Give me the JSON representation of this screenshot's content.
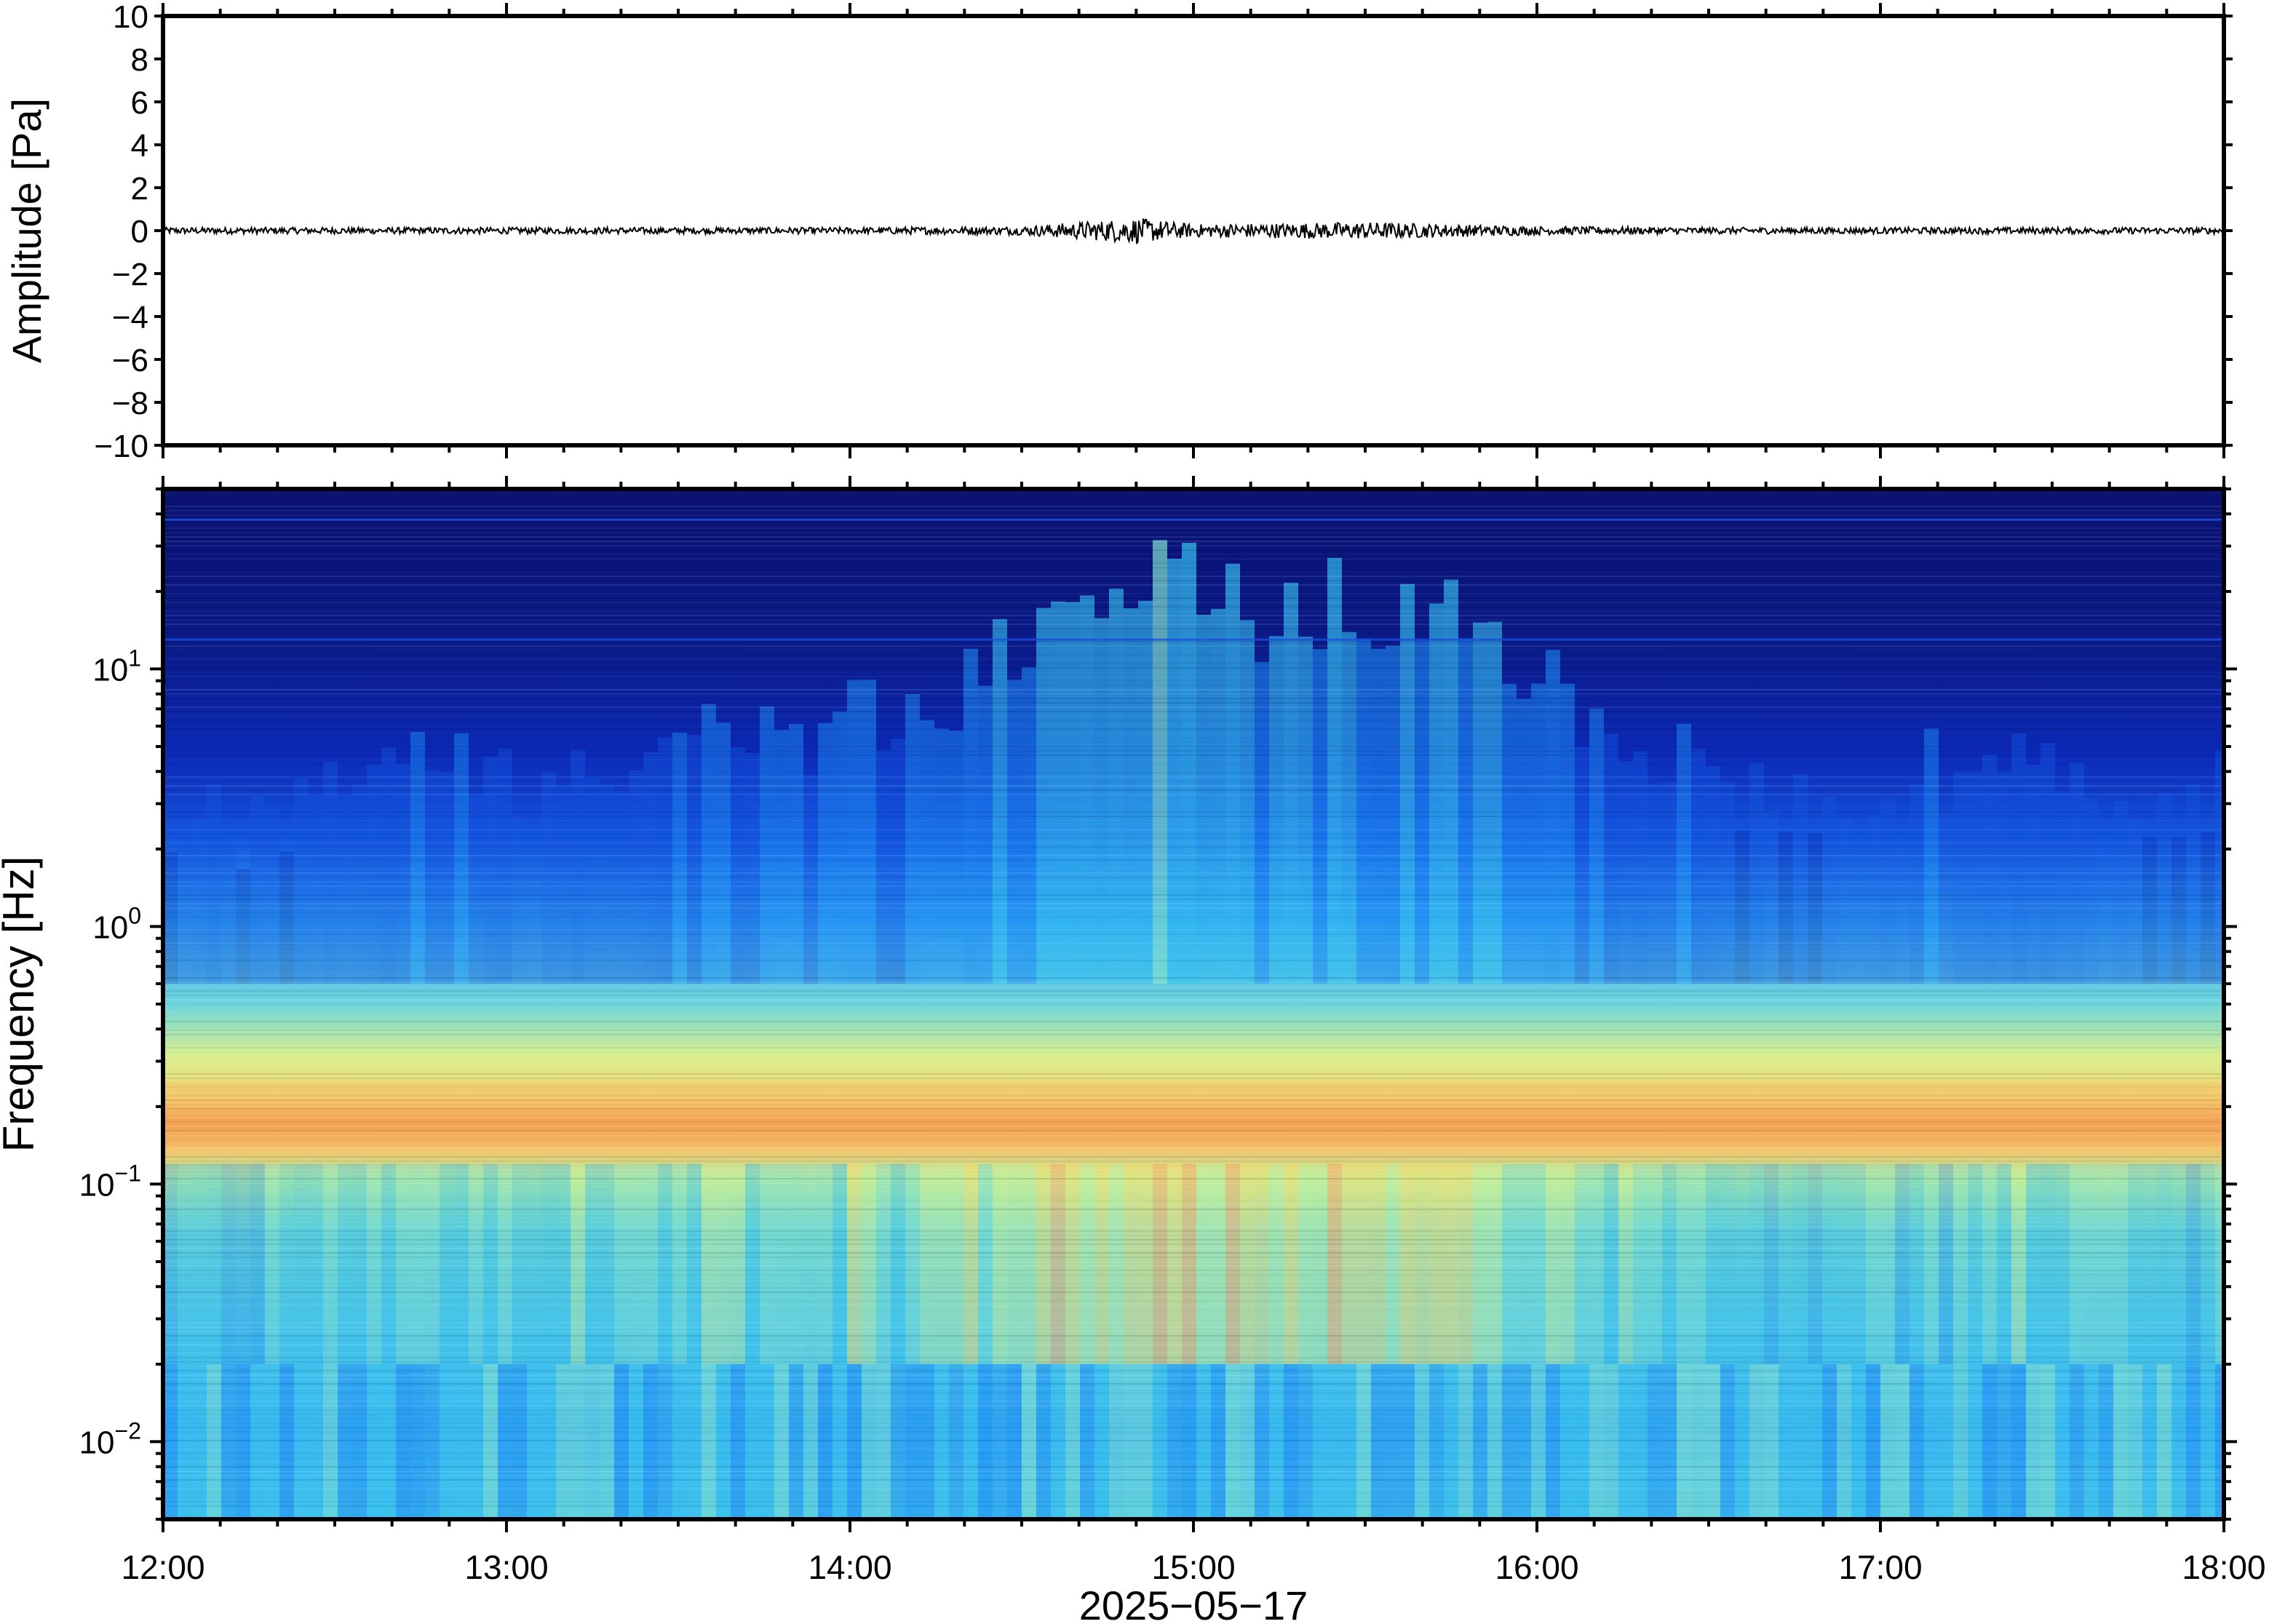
{
  "colors": {
    "frame": "#000000",
    "trace": "#000000",
    "background": "#ffffff",
    "colormap": [
      "#0a1170",
      "#0a2ab0",
      "#1456e0",
      "#1e8ef5",
      "#35c0f0",
      "#7ee0d0",
      "#c8f09a",
      "#f5e070",
      "#f7b56a",
      "#f08a3c"
    ]
  },
  "chart_data": [
    {
      "type": "line",
      "panel": "waveform",
      "ylabel": "Amplitude [Pa]",
      "ylim": [
        -10,
        10
      ],
      "yticks": [
        "10",
        "8",
        "6",
        "4",
        "2",
        "0",
        "−2",
        "−4",
        "−6",
        "−8",
        "−10"
      ],
      "xlim": [
        "2025-05-17 12:00",
        "2025-05-17 18:00"
      ],
      "grid": false,
      "series": [
        {
          "x": [
            "12:00",
            "12:30",
            "13:00",
            "13:30",
            "14:00",
            "14:30",
            "14:45",
            "14:50",
            "15:00",
            "15:15",
            "15:30",
            "16:00",
            "16:30",
            "17:00",
            "17:30",
            "18:00"
          ],
          "y": [
            0.0,
            0.1,
            0.05,
            0.1,
            0.1,
            0.15,
            0.4,
            -0.5,
            0.2,
            0.3,
            0.35,
            0.15,
            0.1,
            0.1,
            0.1,
            0.05
          ],
          "envelope": [
            0.15,
            0.15,
            0.15,
            0.15,
            0.15,
            0.2,
            0.5,
            0.6,
            0.3,
            0.35,
            0.4,
            0.2,
            0.15,
            0.15,
            0.15,
            0.15
          ]
        }
      ]
    },
    {
      "type": "heatmap",
      "panel": "spectrogram",
      "ylabel": "Frequency [Hz]",
      "xlabel": "2025−05−17",
      "y_scale": "log",
      "ylim": [
        0.005,
        50
      ],
      "yticks": [
        {
          "value": 0.01,
          "base": "10",
          "exp": "−2"
        },
        {
          "value": 0.1,
          "base": "10",
          "exp": "−1"
        },
        {
          "value": 1,
          "base": "10",
          "exp": "0"
        },
        {
          "value": 10,
          "base": "10",
          "exp": "1"
        }
      ],
      "xticks": [
        "12:00",
        "13:00",
        "14:00",
        "15:00",
        "16:00",
        "17:00",
        "18:00"
      ],
      "xlim": [
        "12:00",
        "18:00"
      ],
      "colorbar": false,
      "description_values": {
        "time_centers": [
          "12:15",
          "12:40",
          "13:00",
          "13:20",
          "13:50",
          "14:20",
          "14:40",
          "14:50",
          "15:10",
          "15:30",
          "15:50",
          "16:10",
          "16:40",
          "17:10",
          "17:40"
        ],
        "relative_power": [
          0.25,
          0.45,
          0.35,
          0.4,
          0.5,
          0.6,
          0.85,
          0.95,
          0.8,
          0.85,
          0.75,
          0.55,
          0.3,
          0.4,
          0.35
        ],
        "microbarom_band_hz": [
          0.14,
          0.25
        ]
      }
    }
  ]
}
